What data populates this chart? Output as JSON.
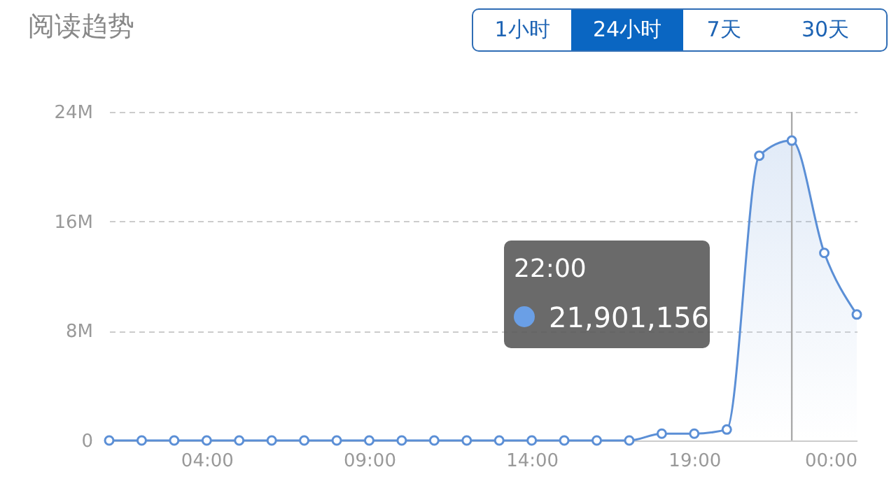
{
  "chart_data": {
    "type": "area",
    "title": "阅读趋势",
    "x": [
      1,
      2,
      3,
      4,
      5,
      6,
      7,
      8,
      9,
      10,
      11,
      12,
      13,
      14,
      15,
      16,
      17,
      18,
      19,
      20,
      21,
      22,
      23,
      24
    ],
    "series": [
      {
        "color": "#5b8fd6",
        "values": [
          0,
          0,
          0,
          0,
          0,
          0,
          0,
          0,
          0,
          0,
          0,
          0,
          0,
          0,
          0,
          0,
          0,
          0.5,
          0.5,
          0.8,
          20.8,
          21.901156,
          13.7,
          9.2
        ]
      }
    ],
    "xlim": [
      1,
      24
    ],
    "xticks": [
      {
        "value": 4,
        "label": "04:00"
      },
      {
        "value": 9,
        "label": "09:00"
      },
      {
        "value": 14,
        "label": "14:00"
      },
      {
        "value": 19,
        "label": "19:00"
      },
      {
        "value": 24,
        "label": "00:00"
      }
    ],
    "ylim": [
      0,
      24
    ],
    "yticks": [
      0,
      {
        "value": 8,
        "label": "8M"
      },
      {
        "value": 16,
        "label": "16M"
      },
      {
        "value": 24,
        "label": "24M"
      }
    ],
    "grid": "y",
    "marker": "circle",
    "line_style": "solid",
    "ref_lines": [
      {
        "axis": "x",
        "value": 22,
        "label": null,
        "color": "#aaaaaa"
      }
    ],
    "annotations": [
      "1小时",
      "24小时",
      "7天",
      "30天",
      "22:00",
      "21,901,156"
    ]
  }
}
